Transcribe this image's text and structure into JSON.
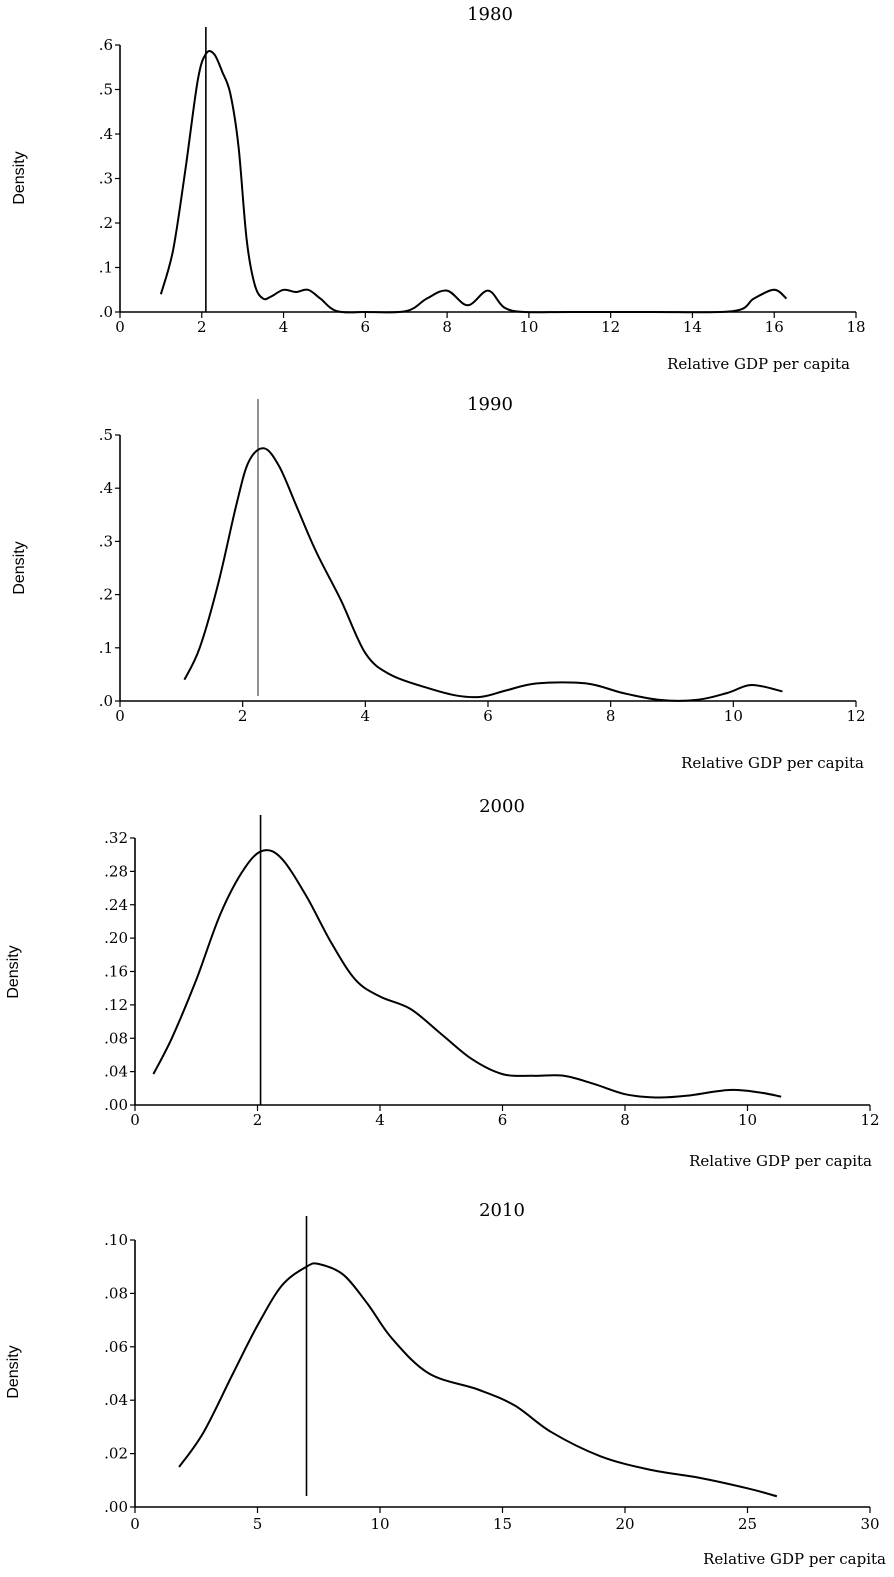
{
  "chart_data": [
    {
      "type": "line",
      "title": "1980",
      "xlabel": "Relative GDP per capita",
      "ylabel": "Density",
      "xlim": [
        0,
        18
      ],
      "ylim": [
        0,
        0.6
      ],
      "x_ticks": [
        0,
        2,
        4,
        6,
        8,
        10,
        12,
        14,
        16,
        18
      ],
      "x_tick_labels": [
        "0",
        "2",
        "4",
        "6",
        "8",
        "10",
        "12",
        "14",
        "16",
        "18"
      ],
      "y_ticks": [
        0,
        0.1,
        0.2,
        0.3,
        0.4,
        0.5,
        0.6
      ],
      "y_tick_labels": [
        ".0",
        ".1",
        ".2",
        ".3",
        ".4",
        ".5",
        ".6"
      ],
      "vline": 2.1,
      "vline_color": "#000000",
      "grid": false,
      "series": [
        {
          "x": [
            1.0,
            1.3,
            1.6,
            1.9,
            2.1,
            2.3,
            2.5,
            2.7,
            2.9,
            3.1,
            3.3,
            3.5,
            3.7,
            4.0,
            4.3,
            4.6,
            4.9,
            5.3,
            6.0,
            7.0,
            7.5,
            8.0,
            8.5,
            9.0,
            9.4,
            9.9,
            11.0,
            13.0,
            15.0,
            15.5,
            16.0,
            16.3
          ],
          "y": [
            0.04,
            0.14,
            0.32,
            0.52,
            0.58,
            0.58,
            0.54,
            0.49,
            0.37,
            0.16,
            0.06,
            0.03,
            0.035,
            0.05,
            0.045,
            0.05,
            0.03,
            0.002,
            0.0,
            0.002,
            0.03,
            0.048,
            0.015,
            0.048,
            0.01,
            0.0,
            0.0,
            0.0,
            0.002,
            0.03,
            0.05,
            0.03
          ]
        }
      ]
    },
    {
      "type": "line",
      "title": "1990",
      "xlabel": "Relative GDP per capita",
      "ylabel": "Density",
      "xlim": [
        0,
        12
      ],
      "ylim": [
        0,
        0.5
      ],
      "x_ticks": [
        0,
        2,
        4,
        6,
        8,
        10,
        12
      ],
      "x_tick_labels": [
        "0",
        "2",
        "4",
        "6",
        "8",
        "10",
        "12"
      ],
      "y_ticks": [
        0,
        0.1,
        0.2,
        0.3,
        0.4,
        0.5
      ],
      "y_tick_labels": [
        ".0",
        ".1",
        ".2",
        ".3",
        ".4",
        ".5"
      ],
      "vline": 2.25,
      "vline_color": "#777777",
      "grid": false,
      "series": [
        {
          "x": [
            1.05,
            1.3,
            1.6,
            1.9,
            2.1,
            2.35,
            2.6,
            2.9,
            3.2,
            3.6,
            4.0,
            4.4,
            5.0,
            5.5,
            5.9,
            6.3,
            6.8,
            7.6,
            8.2,
            8.8,
            9.4,
            9.9,
            10.3,
            10.8
          ],
          "y": [
            0.04,
            0.1,
            0.22,
            0.37,
            0.45,
            0.475,
            0.44,
            0.36,
            0.28,
            0.19,
            0.09,
            0.05,
            0.025,
            0.01,
            0.008,
            0.02,
            0.033,
            0.033,
            0.015,
            0.002,
            0.002,
            0.015,
            0.03,
            0.018
          ]
        }
      ]
    },
    {
      "type": "line",
      "title": "2000",
      "xlabel": "Relative GDP per capita",
      "ylabel": "Density",
      "xlim": [
        0,
        12
      ],
      "ylim": [
        0,
        0.32
      ],
      "x_ticks": [
        0,
        2,
        4,
        6,
        8,
        10,
        12
      ],
      "x_tick_labels": [
        "0",
        "2",
        "4",
        "6",
        "8",
        "10",
        "12"
      ],
      "y_ticks": [
        0,
        0.04,
        0.08,
        0.12,
        0.16,
        0.2,
        0.24,
        0.28,
        0.32
      ],
      "y_tick_labels": [
        ".00",
        ".04",
        ".08",
        ".12",
        ".16",
        ".20",
        ".24",
        ".28",
        ".32"
      ],
      "vline": 2.05,
      "vline_color": "#000000",
      "grid": false,
      "series": [
        {
          "x": [
            0.3,
            0.6,
            1.0,
            1.4,
            1.8,
            2.1,
            2.4,
            2.8,
            3.2,
            3.6,
            4.0,
            4.5,
            5.0,
            5.5,
            6.0,
            6.5,
            7.0,
            7.5,
            8.0,
            8.5,
            9.0,
            9.7,
            10.2,
            10.55
          ],
          "y": [
            0.037,
            0.08,
            0.15,
            0.23,
            0.285,
            0.305,
            0.295,
            0.25,
            0.195,
            0.15,
            0.13,
            0.115,
            0.085,
            0.055,
            0.037,
            0.035,
            0.035,
            0.025,
            0.013,
            0.009,
            0.011,
            0.018,
            0.015,
            0.01
          ]
        }
      ]
    },
    {
      "type": "line",
      "title": "2010",
      "xlabel": "Relative GDP per capita",
      "ylabel": "Density",
      "xlim": [
        0,
        30
      ],
      "ylim": [
        0,
        0.1
      ],
      "x_ticks": [
        0,
        5,
        10,
        15,
        20,
        25,
        30
      ],
      "x_tick_labels": [
        "0",
        "5",
        "10",
        "15",
        "20",
        "25",
        "30"
      ],
      "y_ticks": [
        0,
        0.02,
        0.04,
        0.06,
        0.08,
        0.1
      ],
      "y_tick_labels": [
        ".00",
        ".02",
        ".04",
        ".06",
        ".08",
        ".10"
      ],
      "vline": 7.0,
      "vline_color": "#000000",
      "grid": false,
      "series": [
        {
          "x": [
            1.8,
            2.8,
            4.0,
            5.0,
            6.0,
            7.0,
            7.5,
            8.5,
            9.5,
            10.5,
            12.0,
            14.0,
            15.5,
            17.0,
            19.0,
            21.0,
            23.0,
            25.0,
            26.2
          ],
          "y": [
            0.015,
            0.028,
            0.05,
            0.068,
            0.083,
            0.09,
            0.091,
            0.087,
            0.076,
            0.063,
            0.05,
            0.044,
            0.038,
            0.028,
            0.019,
            0.014,
            0.011,
            0.007,
            0.004
          ]
        }
      ]
    }
  ]
}
